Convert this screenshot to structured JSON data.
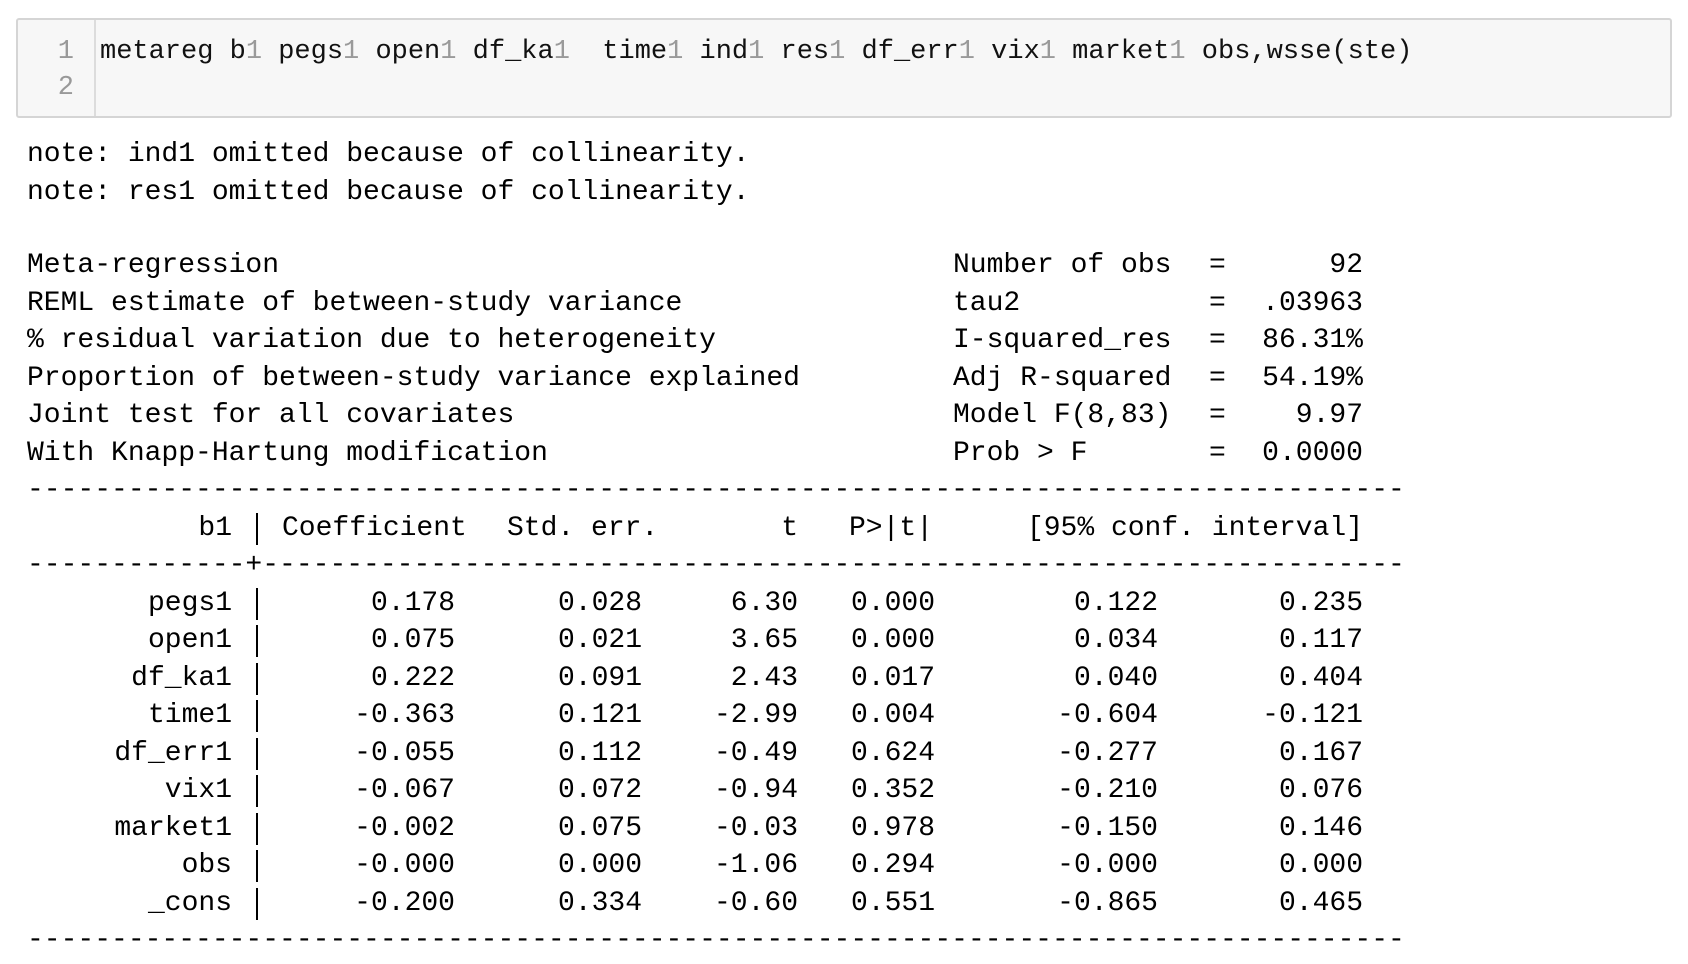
{
  "input_cell": {
    "line_numbers": [
      "1",
      "2"
    ],
    "code_tokens": [
      {
        "t": "metareg b"
      },
      {
        "t": "1",
        "d": true
      },
      {
        "t": " pegs"
      },
      {
        "t": "1",
        "d": true
      },
      {
        "t": " open"
      },
      {
        "t": "1",
        "d": true
      },
      {
        "t": " df_ka"
      },
      {
        "t": "1",
        "d": true
      },
      {
        "t": "  time"
      },
      {
        "t": "1",
        "d": true
      },
      {
        "t": " ind"
      },
      {
        "t": "1",
        "d": true
      },
      {
        "t": " res"
      },
      {
        "t": "1",
        "d": true
      },
      {
        "t": " df_err"
      },
      {
        "t": "1",
        "d": true
      },
      {
        "t": " vix"
      },
      {
        "t": "1",
        "d": true
      },
      {
        "t": " market"
      },
      {
        "t": "1",
        "d": true
      },
      {
        "t": " obs,wsse(ste)"
      }
    ]
  },
  "notes": [
    "note: ind1 omitted because of collinearity.",
    "note: res1 omitted because of collinearity."
  ],
  "summary": [
    {
      "left": "Meta-regression",
      "stat": "Number of obs",
      "eq": "=",
      "value": "92"
    },
    {
      "left": "REML estimate of between-study variance",
      "stat": "tau2",
      "eq": "=",
      "value": ".03963"
    },
    {
      "left": "% residual variation due to heterogeneity",
      "stat": "I-squared_res",
      "eq": "=",
      "value": "86.31%"
    },
    {
      "left": "Proportion of between-study variance explained",
      "stat": "Adj R-squared",
      "eq": "=",
      "value": "54.19%"
    },
    {
      "left": "Joint test for all covariates",
      "stat": "Model F(8,83)",
      "eq": "=",
      "value": "9.97"
    },
    {
      "left": "With Knapp-Hartung modification",
      "stat": "Prob > F",
      "eq": "=",
      "value": "0.0000"
    }
  ],
  "table": {
    "dep_var": "b1",
    "headers": [
      "Coefficient",
      "Std. err.",
      "t",
      "P>|t|",
      "[95% conf. interval]"
    ],
    "rows": [
      {
        "var": "pegs1",
        "coef": "0.178",
        "se": "0.028",
        "t": "6.30",
        "p": "0.000",
        "lo": "0.122",
        "hi": "0.235"
      },
      {
        "var": "open1",
        "coef": "0.075",
        "se": "0.021",
        "t": "3.65",
        "p": "0.000",
        "lo": "0.034",
        "hi": "0.117"
      },
      {
        "var": "df_ka1",
        "coef": "0.222",
        "se": "0.091",
        "t": "2.43",
        "p": "0.017",
        "lo": "0.040",
        "hi": "0.404"
      },
      {
        "var": "time1",
        "coef": "-0.363",
        "se": "0.121",
        "t": "-2.99",
        "p": "0.004",
        "lo": "-0.604",
        "hi": "-0.121"
      },
      {
        "var": "df_err1",
        "coef": "-0.055",
        "se": "0.112",
        "t": "-0.49",
        "p": "0.624",
        "lo": "-0.277",
        "hi": "0.167"
      },
      {
        "var": "vix1",
        "coef": "-0.067",
        "se": "0.072",
        "t": "-0.94",
        "p": "0.352",
        "lo": "-0.210",
        "hi": "0.076"
      },
      {
        "var": "market1",
        "coef": "-0.002",
        "se": "0.075",
        "t": "-0.03",
        "p": "0.978",
        "lo": "-0.150",
        "hi": "0.146"
      },
      {
        "var": "obs",
        "coef": "-0.000",
        "se": "0.000",
        "t": "-1.06",
        "p": "0.294",
        "lo": "-0.000",
        "hi": "0.000"
      },
      {
        "var": "_cons",
        "coef": "-0.200",
        "se": "0.334",
        "t": "-0.60",
        "p": "0.551",
        "lo": "-0.865",
        "hi": "0.465"
      }
    ]
  },
  "colors": {
    "cell_bg": "#f7f7f7",
    "line_number": "#999999",
    "digit_token": "#9a9a9a"
  }
}
